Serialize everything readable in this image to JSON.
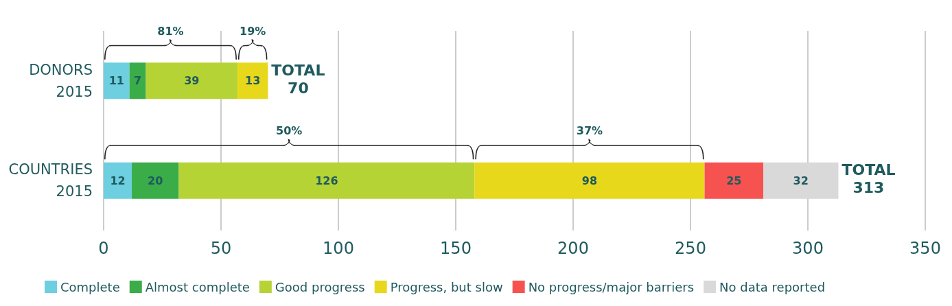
{
  "chart_data": {
    "type": "bar",
    "orientation": "horizontal",
    "stacked": true,
    "categories": [
      "DONORS 2015",
      "COUNTRIES 2015"
    ],
    "series": [
      {
        "name": "Complete",
        "color": "#6dcfe0",
        "values": [
          11,
          12
        ]
      },
      {
        "name": "Almost complete",
        "color": "#3aac48",
        "values": [
          7,
          20
        ]
      },
      {
        "name": "Good progress",
        "color": "#b5d334",
        "values": [
          39,
          126
        ]
      },
      {
        "name": "Progress, but slow",
        "color": "#e8d81c",
        "values": [
          13,
          98
        ]
      },
      {
        "name": "No progress/major barriers",
        "color": "#f65350",
        "values": [
          null,
          25
        ]
      },
      {
        "name": "No data reported",
        "color": "#d9d9d9",
        "values": [
          null,
          32
        ]
      }
    ],
    "xlim": [
      0,
      350
    ],
    "xticks": [
      0,
      50,
      100,
      150,
      200,
      250,
      300,
      350
    ],
    "grid": "x",
    "legend": "bottom",
    "data_labels": true,
    "totals": [
      "TOTAL 70",
      "TOTAL 313"
    ],
    "annotations": [
      "81%",
      "19%",
      "50%",
      "37%"
    ]
  }
}
